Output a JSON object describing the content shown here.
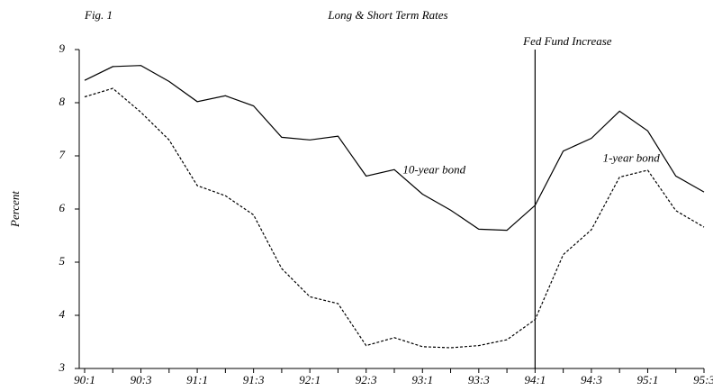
{
  "chart_data": {
    "type": "line",
    "figure_label": "Fig. 1",
    "title": "Long & Short Term Rates",
    "y_label": "Percent",
    "categories": [
      "90:1",
      null,
      "90:3",
      null,
      "91:1",
      null,
      "91:3",
      null,
      "92:1",
      null,
      "92:3",
      null,
      "93:1",
      null,
      "93:3",
      null,
      "94:1",
      null,
      "94:3",
      null,
      "95:1",
      null,
      "95:3"
    ],
    "series": [
      {
        "name": "10-year bond",
        "color": "#000000",
        "style": "solid",
        "values": [
          8.42,
          8.68,
          8.7,
          8.4,
          8.02,
          8.13,
          7.94,
          7.35,
          7.3,
          7.37,
          6.62,
          6.74,
          6.28,
          5.98,
          5.62,
          5.6,
          6.07,
          7.09,
          7.33,
          7.84,
          7.47,
          6.62,
          6.32
        ]
      },
      {
        "name": "1-year bond",
        "color": "#000000",
        "style": "dashed",
        "values": [
          8.11,
          8.27,
          7.82,
          7.3,
          6.44,
          6.25,
          5.89,
          4.88,
          4.35,
          4.22,
          3.43,
          3.58,
          3.41,
          3.39,
          3.43,
          3.54,
          3.92,
          5.14,
          5.61,
          6.6,
          6.73,
          5.97,
          5.66
        ]
      }
    ],
    "vline": {
      "at": "94:1",
      "label": "Fed Fund Increase"
    },
    "ylim": [
      3,
      9
    ],
    "yticks": [
      3,
      4,
      5,
      6,
      7,
      8,
      9
    ],
    "grid": false
  }
}
